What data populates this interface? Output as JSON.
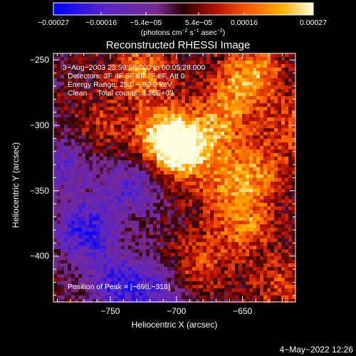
{
  "chart_data": {
    "type": "heatmap",
    "title": "Reconstructed RHESSI Image",
    "xlabel": "Heliocentric X (arcsec)",
    "ylabel": "Heliocentric Y (arcsec)",
    "xlim": [
      -793,
      -610
    ],
    "ylim": [
      -435,
      -245
    ],
    "x_ticks": [
      -750,
      -700,
      -650
    ],
    "y_ticks": [
      -250,
      -300,
      -350,
      -400
    ],
    "colorbar": {
      "label_prefix": "(photons cm",
      "label_exp1": "−2",
      "label_mid": " s",
      "label_exp2": "−1",
      "label_mid2": " asec",
      "label_exp3": "−2",
      "label_suffix": ")",
      "tick_labels": [
        "−0.00027",
        "−0.00016",
        "−5.4e−05",
        "5.4e−05",
        "0.00016",
        "0.00027"
      ],
      "range": [
        -0.00027,
        0.00027
      ],
      "colors": [
        "#0000ff",
        "#5a24c8",
        "#7a2a90",
        "#2a0000",
        "#b01000",
        "#ff5a00",
        "#ffb000",
        "#ffffe0"
      ]
    },
    "annotations": {
      "time_range": "3−Aug−2003 23:59:56.000 to 00:05:28.000",
      "detectors": "Detectors: 3F 4F 5F 6F 7F 8F, Att 0",
      "energy": "Energy Range: 25.0 − 50.0 keV",
      "clean": "Clean     Total counts: 4.36E+03",
      "peak": "Position of Peak = [−698,−318]"
    },
    "peak": {
      "x": -698,
      "y": -318
    },
    "bright_regions": [
      {
        "x": -698,
        "y": -318,
        "amp": 1.0
      },
      {
        "x": -712,
        "y": -305,
        "amp": 0.7
      },
      {
        "x": -670,
        "y": -300,
        "amp": 0.55
      },
      {
        "x": -655,
        "y": -270,
        "amp": 0.45
      },
      {
        "x": -640,
        "y": -255,
        "amp": 0.5
      },
      {
        "x": -728,
        "y": -258,
        "amp": 0.6
      },
      {
        "x": -640,
        "y": -335,
        "amp": 0.5
      },
      {
        "x": -650,
        "y": -375,
        "amp": 0.55
      },
      {
        "x": -665,
        "y": -345,
        "amp": 0.4
      },
      {
        "x": -685,
        "y": -405,
        "amp": 0.45
      },
      {
        "x": -622,
        "y": -420,
        "amp": 0.35
      },
      {
        "x": -760,
        "y": -300,
        "amp": 0.3
      },
      {
        "x": -615,
        "y": -300,
        "amp": 0.4
      }
    ],
    "dark_regions": [
      {
        "x": -770,
        "y": -380,
        "amp": -0.8
      },
      {
        "x": -745,
        "y": -420,
        "amp": -0.7
      },
      {
        "x": -735,
        "y": -345,
        "amp": -0.55
      },
      {
        "x": -785,
        "y": -330,
        "amp": -0.5
      },
      {
        "x": -715,
        "y": -425,
        "amp": -0.45
      }
    ]
  },
  "timestamp": "4−May−2022 12:26"
}
